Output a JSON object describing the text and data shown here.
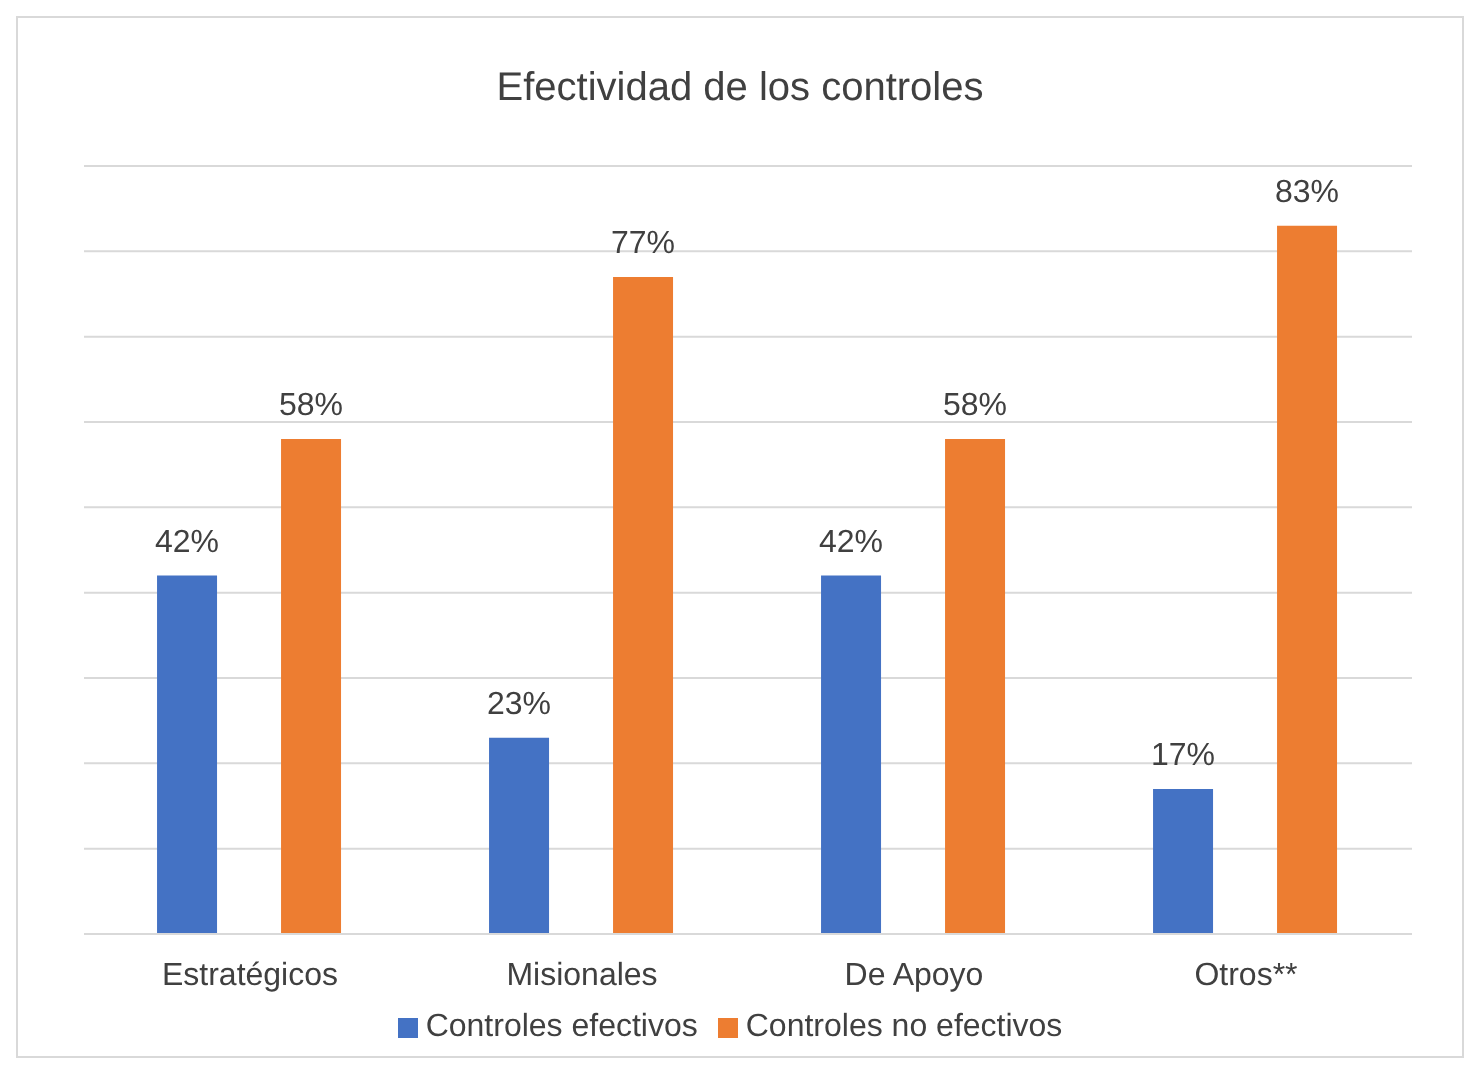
{
  "chart_data": {
    "type": "bar",
    "title": "Efectividad de los controles",
    "categories": [
      "Estratégicos",
      "Misionales",
      "De Apoyo",
      "Otros**"
    ],
    "series": [
      {
        "name": "Controles efectivos",
        "color": "#4472c4",
        "values": [
          42,
          23,
          42,
          17
        ],
        "value_labels": [
          "42%",
          "23%",
          "42%",
          "17%"
        ]
      },
      {
        "name": "Controles no efectivos",
        "color": "#ed7d31",
        "values": [
          58,
          77,
          58,
          83
        ],
        "value_labels": [
          "58%",
          "77%",
          "58%",
          "83%"
        ]
      }
    ],
    "ylim": [
      0,
      90
    ],
    "tick_labels": "x",
    "grid": "y",
    "legend": "bottom"
  }
}
